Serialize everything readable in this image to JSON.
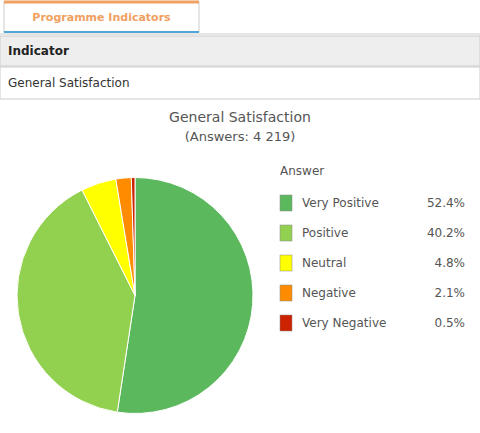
{
  "chart_data": {
    "type": "pie",
    "title": "General Satisfaction",
    "subtitle": "(Answers: 4 219)",
    "annotations": [
      "Programme Indicators",
      "Indicator",
      "General Satisfaction"
    ],
    "legend_title": "Answer",
    "categories": [
      "Very Positive",
      "Positive",
      "Neutral",
      "Negative",
      "Very Negative"
    ],
    "values": [
      52.4,
      40.2,
      4.8,
      2.1,
      0.5
    ],
    "value_labels": [
      "52.4%",
      "40.2%",
      "4.8%",
      "2.1%",
      "0.5%"
    ],
    "colors": [
      "#5cb85c",
      "#92d050",
      "#ffff00",
      "#ff8c00",
      "#cc2200"
    ],
    "legend": "right"
  }
}
